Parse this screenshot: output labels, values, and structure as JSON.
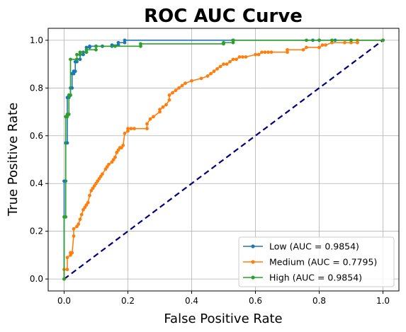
{
  "chart_data": {
    "type": "line",
    "title": "ROC AUC Curve",
    "xlabel": "False Positive Rate",
    "ylabel": "True Positive Rate",
    "xlim": [
      -0.05,
      1.05
    ],
    "ylim": [
      -0.05,
      1.05
    ],
    "xticks": [
      "0.0",
      "0.2",
      "0.4",
      "0.6",
      "0.8",
      "1.0"
    ],
    "yticks": [
      "0.0",
      "0.2",
      "0.4",
      "0.6",
      "0.8",
      "1.0"
    ],
    "grid": true,
    "legend_position": "lower-right",
    "chance_line": {
      "x": [
        0,
        1
      ],
      "y": [
        0,
        1
      ],
      "color": "#000080",
      "style": "dashed"
    },
    "series": [
      {
        "name": "Low (AUC = 0.9854)",
        "color": "#1f77b4",
        "x": [
          0,
          0,
          0.005,
          0.005,
          0.01,
          0.01,
          0.015,
          0.015,
          0.02,
          0.02,
          0.025,
          0.025,
          0.03,
          0.03,
          0.035,
          0.035,
          0.04,
          0.04,
          0.05,
          0.05,
          0.06,
          0.06,
          0.07,
          0.07,
          0.08,
          0.08,
          0.1,
          0.1,
          0.12,
          0.12,
          0.15,
          0.15,
          0.17,
          0.17,
          0.19,
          0.19,
          0.53,
          0.53,
          0.78,
          0.8,
          0.85,
          0.9,
          1.0
        ],
        "y": [
          0,
          0.41,
          0.41,
          0.57,
          0.57,
          0.76,
          0.76,
          0.77,
          0.77,
          0.8,
          0.8,
          0.86,
          0.86,
          0.87,
          0.87,
          0.91,
          0.91,
          0.92,
          0.92,
          0.94,
          0.94,
          0.95,
          0.95,
          0.97,
          0.97,
          0.975,
          0.975,
          0.975,
          0.975,
          0.975,
          0.975,
          0.98,
          0.98,
          0.99,
          0.99,
          1.0,
          1.0,
          1.0,
          1.0,
          1.0,
          1.0,
          1.0,
          1.0
        ]
      },
      {
        "name": "Medium (AUC = 0.7795)",
        "color": "#ff7f0e",
        "x": [
          0,
          0,
          0.01,
          0.01,
          0.02,
          0.02,
          0.025,
          0.03,
          0.03,
          0.04,
          0.045,
          0.05,
          0.055,
          0.06,
          0.065,
          0.07,
          0.075,
          0.08,
          0.085,
          0.09,
          0.095,
          0.1,
          0.105,
          0.11,
          0.115,
          0.12,
          0.13,
          0.135,
          0.14,
          0.15,
          0.155,
          0.16,
          0.165,
          0.17,
          0.175,
          0.18,
          0.185,
          0.19,
          0.2,
          0.2,
          0.21,
          0.21,
          0.22,
          0.26,
          0.26,
          0.27,
          0.28,
          0.3,
          0.3,
          0.31,
          0.32,
          0.33,
          0.33,
          0.34,
          0.35,
          0.36,
          0.37,
          0.38,
          0.4,
          0.43,
          0.45,
          0.46,
          0.47,
          0.48,
          0.49,
          0.5,
          0.51,
          0.52,
          0.53,
          0.54,
          0.55,
          0.56,
          0.57,
          0.6,
          0.61,
          0.62,
          0.63,
          0.64,
          0.65,
          0.7,
          0.7,
          0.75,
          0.76,
          0.8,
          0.81,
          0.82,
          0.84,
          0.88,
          0.9,
          0.92,
          0.92,
          1.0
        ],
        "y": [
          0,
          0.04,
          0.04,
          0.09,
          0.1,
          0.11,
          0.11,
          0.18,
          0.21,
          0.22,
          0.23,
          0.25,
          0.27,
          0.29,
          0.3,
          0.31,
          0.32,
          0.35,
          0.37,
          0.38,
          0.39,
          0.4,
          0.41,
          0.42,
          0.43,
          0.44,
          0.46,
          0.47,
          0.48,
          0.49,
          0.5,
          0.51,
          0.53,
          0.54,
          0.55,
          0.55,
          0.56,
          0.61,
          0.62,
          0.63,
          0.63,
          0.63,
          0.63,
          0.63,
          0.65,
          0.67,
          0.68,
          0.7,
          0.71,
          0.72,
          0.73,
          0.75,
          0.77,
          0.78,
          0.79,
          0.8,
          0.81,
          0.82,
          0.83,
          0.84,
          0.85,
          0.86,
          0.87,
          0.88,
          0.89,
          0.9,
          0.9,
          0.91,
          0.92,
          0.92,
          0.93,
          0.93,
          0.93,
          0.94,
          0.94,
          0.95,
          0.95,
          0.95,
          0.95,
          0.95,
          0.96,
          0.96,
          0.97,
          0.97,
          0.98,
          0.98,
          0.99,
          0.99,
          0.99,
          0.99,
          1.0,
          1.0
        ]
      },
      {
        "name": "High (AUC = 0.9854)",
        "color": "#2ca02c",
        "x": [
          0,
          0,
          0.005,
          0.005,
          0.01,
          0.01,
          0.015,
          0.015,
          0.02,
          0.02,
          0.04,
          0.04,
          0.05,
          0.05,
          0.07,
          0.07,
          0.1,
          0.1,
          0.16,
          0.24,
          0.24,
          0.5,
          0.5,
          0.53,
          0.53,
          0.76,
          0.8,
          0.84,
          0.9,
          1.0
        ],
        "y": [
          0,
          0.26,
          0.26,
          0.68,
          0.68,
          0.69,
          0.69,
          0.77,
          0.77,
          0.92,
          0.92,
          0.94,
          0.94,
          0.95,
          0.95,
          0.96,
          0.96,
          0.975,
          0.975,
          0.975,
          0.985,
          0.985,
          0.99,
          0.99,
          1.0,
          1.0,
          1.0,
          1.0,
          1.0,
          1.0
        ]
      }
    ]
  }
}
